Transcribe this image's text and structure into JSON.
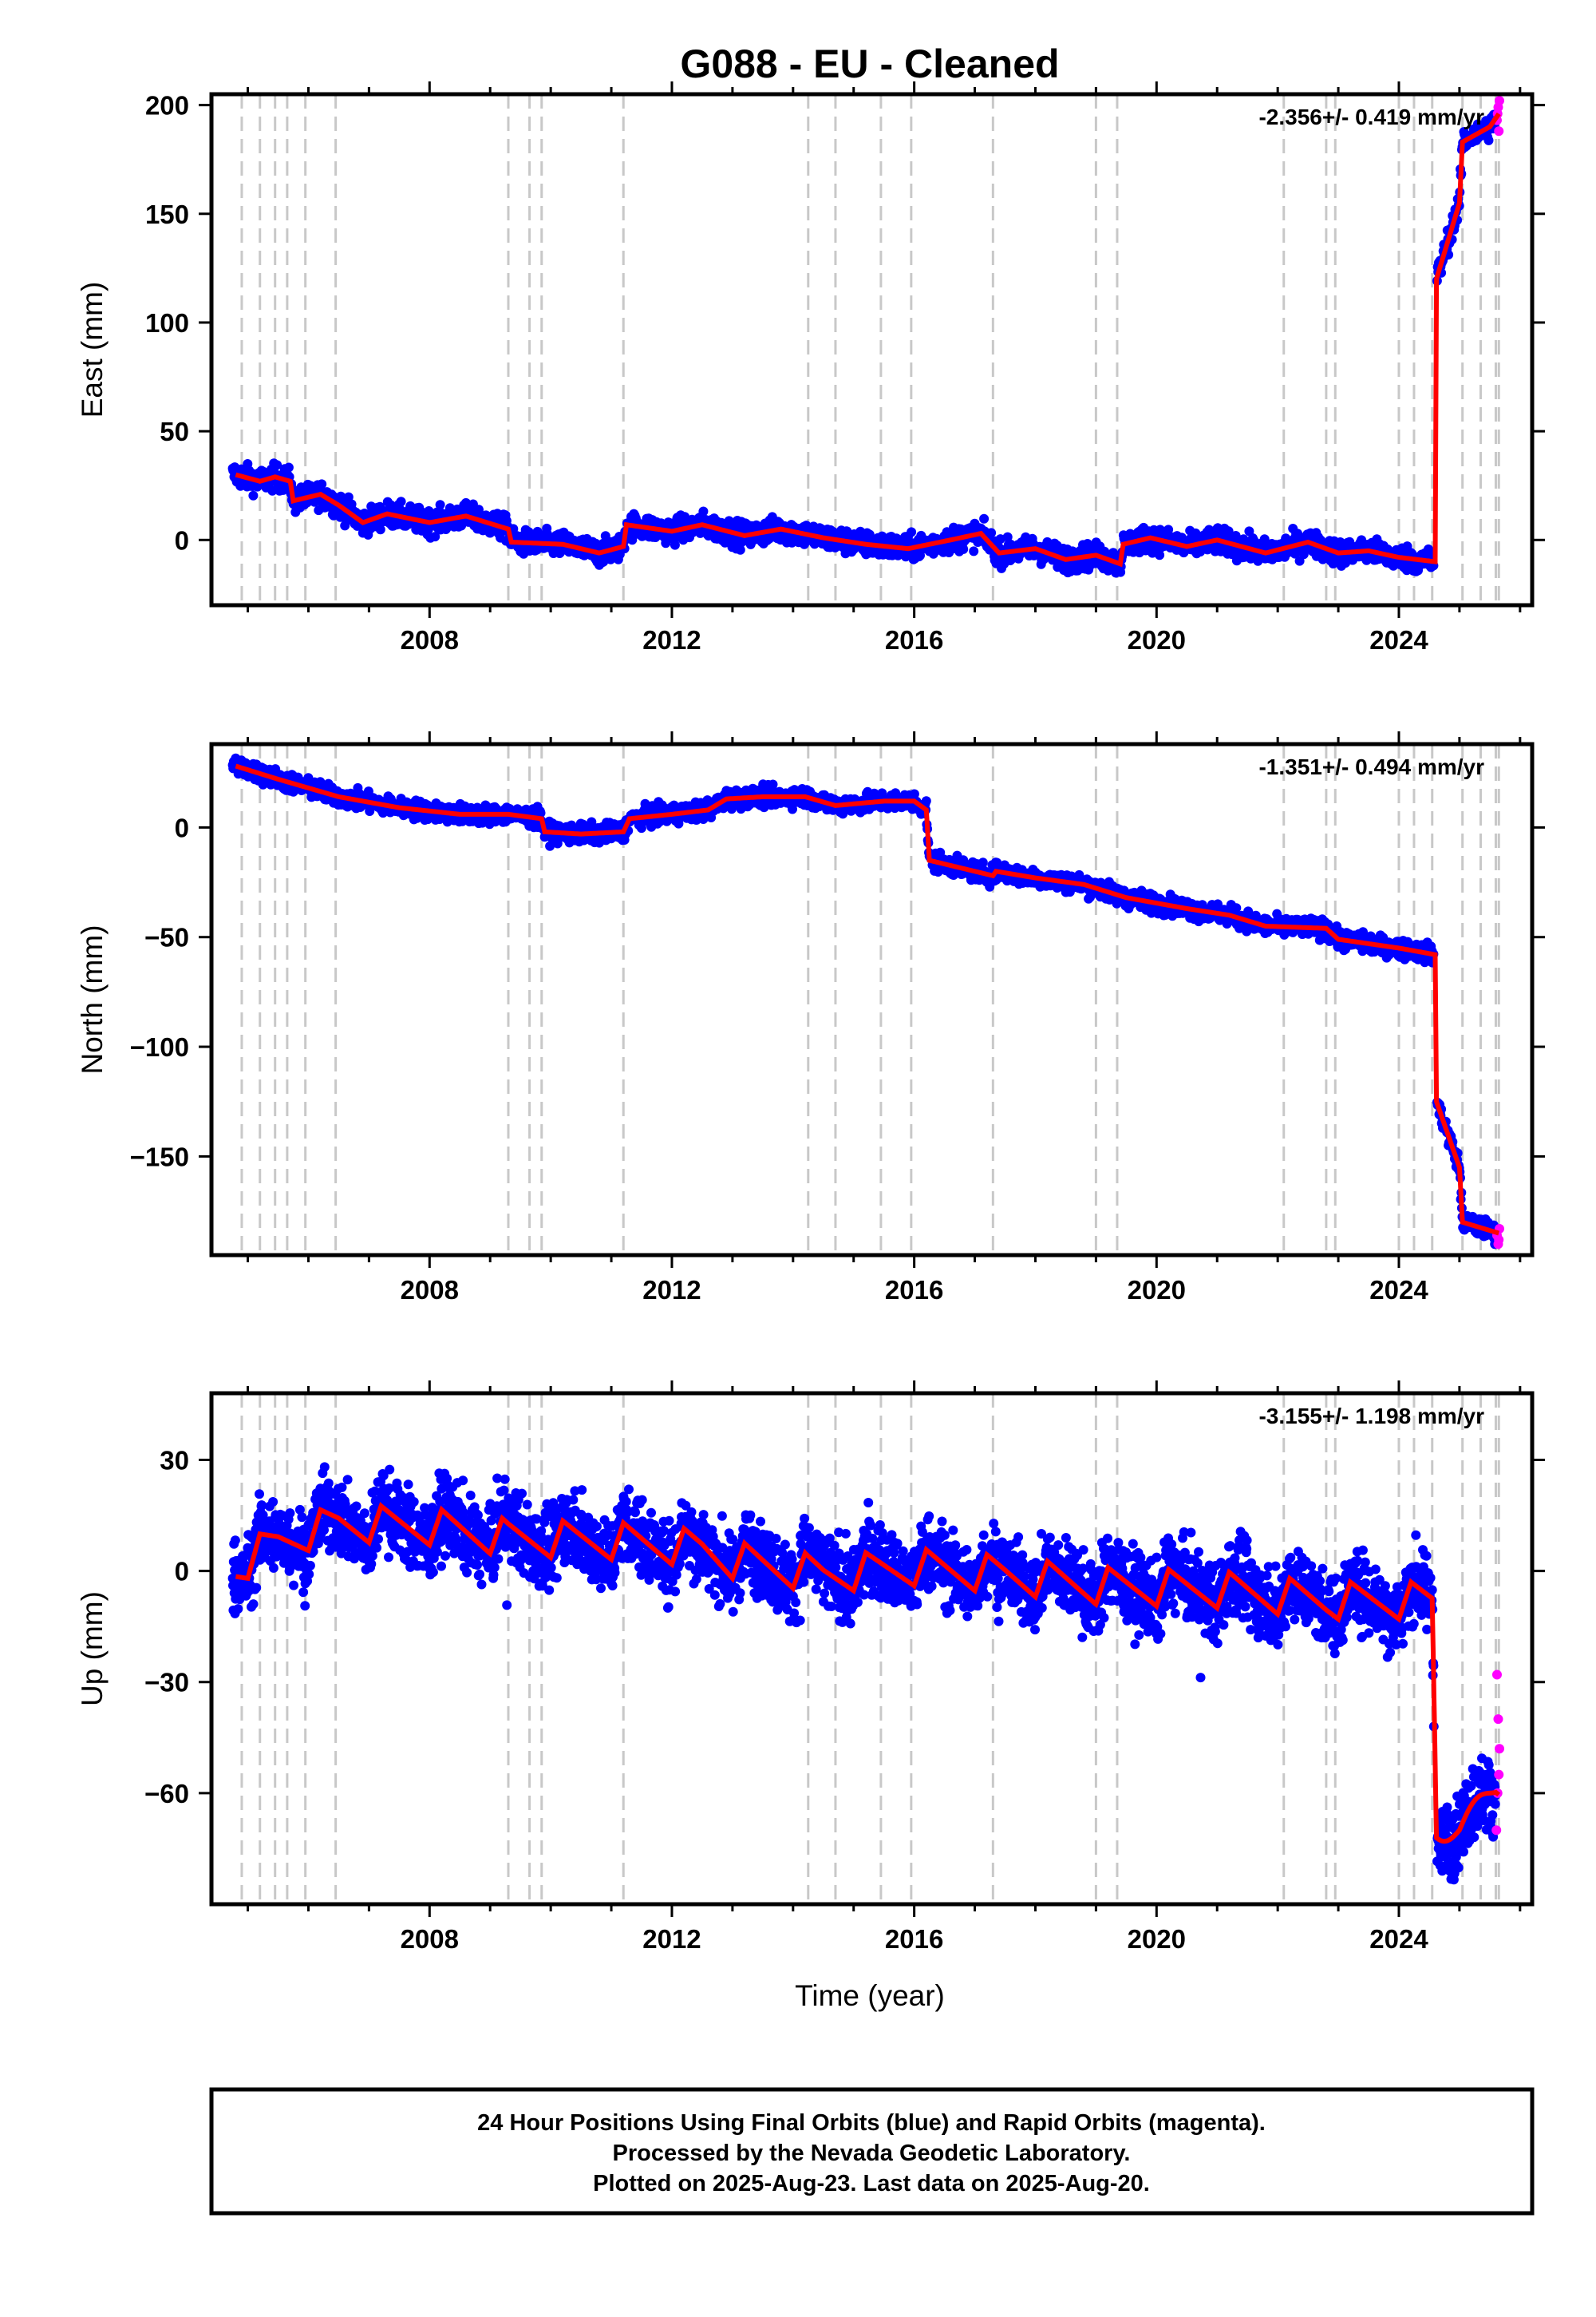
{
  "title": "G088  - EU - Cleaned",
  "footer": {
    "line1": "24 Hour Positions Using Final Orbits (blue) and Rapid Orbits (magenta).",
    "line2": "Processed by the Nevada Geodetic Laboratory.",
    "line3": "Plotted on 2025-Aug-23. Last data on 2025-Aug-20."
  },
  "colors": {
    "final": "#0000ff",
    "rapid": "#ff00ff",
    "model": "#ff0000",
    "events": "#c8c8c8"
  },
  "chart_data": [
    {
      "type": "scatter",
      "ylabel": "East (mm)",
      "xlabel": "",
      "rate_label": "-2.356+/- 0.419 mm/yr",
      "xlim": [
        2004.4,
        2026.2
      ],
      "ylim": [
        -30,
        205
      ],
      "xticks": [
        2008,
        2012,
        2016,
        2020,
        2024
      ],
      "yticks": [
        0,
        50,
        100,
        150,
        200
      ],
      "ytick_labels": [
        "0",
        "50",
        "100",
        "150",
        "200"
      ],
      "event_lines": [
        2004.9,
        2005.2,
        2005.45,
        2005.65,
        2005.95,
        2006.45,
        2009.3,
        2009.65,
        2009.85,
        2011.2,
        2014.25,
        2014.7,
        2015.45,
        2015.95,
        2017.3,
        2019.0,
        2019.35,
        2022.1,
        2022.8,
        2022.95,
        2024.0,
        2024.25,
        2024.55,
        2025.05,
        2025.35,
        2025.6,
        2025.65
      ],
      "model": [
        [
          2004.8,
          30
        ],
        [
          2005.2,
          27
        ],
        [
          2005.45,
          29
        ],
        [
          2005.7,
          27
        ],
        [
          2005.75,
          18
        ],
        [
          2006.2,
          21
        ],
        [
          2006.5,
          16
        ],
        [
          2006.9,
          8
        ],
        [
          2007.3,
          12
        ],
        [
          2008.0,
          8
        ],
        [
          2008.6,
          11
        ],
        [
          2009.3,
          5
        ],
        [
          2009.35,
          -1
        ],
        [
          2010.2,
          -2
        ],
        [
          2010.8,
          -6
        ],
        [
          2011.2,
          -3
        ],
        [
          2011.25,
          7
        ],
        [
          2012.0,
          4
        ],
        [
          2012.5,
          7
        ],
        [
          2013.2,
          2
        ],
        [
          2013.8,
          5
        ],
        [
          2014.5,
          1
        ],
        [
          2015.2,
          -2
        ],
        [
          2015.9,
          -4
        ],
        [
          2016.6,
          0
        ],
        [
          2017.1,
          3
        ],
        [
          2017.4,
          -6
        ],
        [
          2018.0,
          -4
        ],
        [
          2018.5,
          -9
        ],
        [
          2019.0,
          -7
        ],
        [
          2019.4,
          -11
        ],
        [
          2019.45,
          -2
        ],
        [
          2019.9,
          1
        ],
        [
          2020.5,
          -3
        ],
        [
          2021.0,
          0
        ],
        [
          2021.8,
          -6
        ],
        [
          2022.5,
          -1
        ],
        [
          2023.0,
          -6
        ],
        [
          2023.5,
          -5
        ],
        [
          2024.0,
          -8
        ],
        [
          2024.6,
          -10
        ],
        [
          2024.62,
          120
        ],
        [
          2025.0,
          155
        ],
        [
          2025.05,
          183
        ],
        [
          2025.5,
          190
        ],
        [
          2025.65,
          196
        ]
      ],
      "noise": 4,
      "rapid": [
        [
          2025.62,
          193
        ],
        [
          2025.64,
          199
        ],
        [
          2025.66,
          202
        ],
        [
          2025.65,
          188
        ],
        [
          2025.63,
          196
        ]
      ]
    },
    {
      "type": "scatter",
      "ylabel": "North (mm)",
      "xlabel": "",
      "rate_label": "-1.351+/- 0.494 mm/yr",
      "xlim": [
        2004.4,
        2026.2
      ],
      "ylim": [
        -195,
        38
      ],
      "xticks": [
        2008,
        2012,
        2016,
        2020,
        2024
      ],
      "yticks": [
        0,
        -50,
        -100,
        -150
      ],
      "ytick_labels": [
        "0",
        "−50",
        "−100",
        "−150"
      ],
      "event_lines": [
        2004.9,
        2005.2,
        2005.45,
        2005.65,
        2005.95,
        2006.45,
        2009.3,
        2009.65,
        2009.85,
        2011.2,
        2014.25,
        2014.7,
        2015.45,
        2015.95,
        2017.3,
        2019.0,
        2019.35,
        2022.1,
        2022.8,
        2022.95,
        2024.0,
        2024.25,
        2024.55,
        2025.05,
        2025.35,
        2025.6,
        2025.65
      ],
      "model": [
        [
          2004.8,
          28
        ],
        [
          2005.5,
          22
        ],
        [
          2006.5,
          14
        ],
        [
          2007.5,
          9
        ],
        [
          2008.5,
          6
        ],
        [
          2009.3,
          6
        ],
        [
          2009.85,
          4
        ],
        [
          2009.9,
          -2
        ],
        [
          2010.5,
          -3
        ],
        [
          2011.2,
          -2
        ],
        [
          2011.3,
          4
        ],
        [
          2012.0,
          6
        ],
        [
          2012.6,
          8
        ],
        [
          2012.9,
          13
        ],
        [
          2013.5,
          14
        ],
        [
          2014.2,
          14
        ],
        [
          2014.7,
          10
        ],
        [
          2015.5,
          12
        ],
        [
          2016.0,
          12
        ],
        [
          2016.2,
          8
        ],
        [
          2016.25,
          -15
        ],
        [
          2017.3,
          -22
        ],
        [
          2017.35,
          -20
        ],
        [
          2018.0,
          -23
        ],
        [
          2018.8,
          -26
        ],
        [
          2019.5,
          -32
        ],
        [
          2020.5,
          -37
        ],
        [
          2021.2,
          -40
        ],
        [
          2021.8,
          -45
        ],
        [
          2022.8,
          -46
        ],
        [
          2023.0,
          -51
        ],
        [
          2024.0,
          -55
        ],
        [
          2024.6,
          -58
        ],
        [
          2024.62,
          -125
        ],
        [
          2025.0,
          -155
        ],
        [
          2025.05,
          -180
        ],
        [
          2025.65,
          -185
        ]
      ],
      "noise": 3,
      "rapid": [
        [
          2025.62,
          -186
        ],
        [
          2025.64,
          -190
        ],
        [
          2025.66,
          -183
        ],
        [
          2025.65,
          -188
        ]
      ]
    },
    {
      "type": "scatter",
      "ylabel": "Up (mm)",
      "xlabel": "Time (year)",
      "rate_label": "-3.155+/- 1.198 mm/yr",
      "xlim": [
        2004.4,
        2026.2
      ],
      "ylim": [
        -90,
        48
      ],
      "xticks": [
        2008,
        2012,
        2016,
        2020,
        2024
      ],
      "yticks": [
        30,
        0,
        -30,
        -60
      ],
      "ytick_labels": [
        "30",
        "0",
        "−30",
        "−60"
      ],
      "event_lines": [
        2004.9,
        2005.2,
        2005.45,
        2005.65,
        2005.95,
        2006.45,
        2009.3,
        2009.65,
        2009.85,
        2011.2,
        2014.25,
        2014.7,
        2015.45,
        2015.95,
        2017.3,
        2019.0,
        2019.35,
        2022.1,
        2022.8,
        2022.95,
        2024.0,
        2024.25,
        2024.55,
        2025.05,
        2025.35,
        2025.6,
        2025.65
      ],
      "model_base": [
        [
          2004.8,
          1
        ],
        [
          2005.5,
          8
        ],
        [
          2006.5,
          13
        ],
        [
          2008.0,
          12
        ],
        [
          2009.3,
          9
        ],
        [
          2011.2,
          8
        ],
        [
          2012.5,
          6
        ],
        [
          2013.0,
          3
        ],
        [
          2014.5,
          -1
        ],
        [
          2016.0,
          1
        ],
        [
          2017.5,
          -1
        ],
        [
          2019.0,
          -4
        ],
        [
          2021.0,
          -5
        ],
        [
          2022.8,
          -8
        ],
        [
          2024.55,
          -8
        ],
        [
          2024.62,
          -70
        ],
        [
          2025.0,
          -70
        ],
        [
          2025.6,
          -58
        ]
      ],
      "seasonal_amplitude": 5,
      "noise": 7,
      "rapid": [
        [
          2025.62,
          -28
        ],
        [
          2025.64,
          -40
        ],
        [
          2025.66,
          -48
        ],
        [
          2025.65,
          -55
        ],
        [
          2025.63,
          -60
        ],
        [
          2025.61,
          -70
        ]
      ]
    }
  ]
}
